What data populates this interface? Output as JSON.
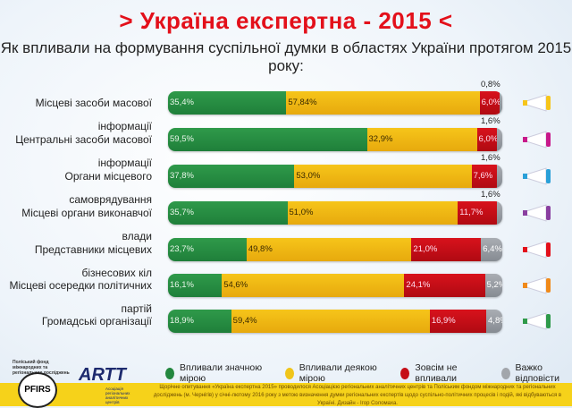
{
  "title": "> Україна експертна - 2015 <",
  "subtitle": "Як впливали на формування суспільної думки в областях України протягом 2015 року:",
  "colors": {
    "green": "#23873f",
    "yellow": "#f0b715",
    "red": "#c50f18",
    "gray": "#979ba1",
    "title": "#e3101a"
  },
  "chart_data": {
    "type": "bar",
    "stacked": true,
    "orientation": "horizontal",
    "title": "Як впливали на формування суспільної думки в областях України протягом 2015 року:",
    "categories": [
      "Місцеві засоби масової інформації",
      "Центральні засоби масової інформації",
      "Органи місцевого самоврядування",
      "Місцеві органи виконавчої влади",
      "Представники місцевих бізнесових кіл",
      "Місцеві осередки політичних партій",
      "Громадські організації"
    ],
    "series": [
      {
        "name": "Впливали значною мірою",
        "color": "#23873f",
        "values": [
          35.4,
          59.5,
          37.8,
          35.7,
          23.7,
          16.1,
          18.9
        ],
        "labels": [
          "35,4%",
          "59,5%",
          "37,8%",
          "35,7%",
          "23,7%",
          "16,1%",
          "18,9%"
        ]
      },
      {
        "name": "Впливали деякою мірою",
        "color": "#f0b715",
        "values": [
          57.84,
          32.9,
          53.0,
          51.0,
          49.8,
          54.6,
          59.4
        ],
        "labels": [
          "57,84%",
          "32,9%",
          "53,0%",
          "51,0%",
          "49,8%",
          "54,6%",
          "59,4%"
        ]
      },
      {
        "name": "Зовсім не впливали",
        "color": "#c50f18",
        "values": [
          6.0,
          6.0,
          7.6,
          11.7,
          21.0,
          24.1,
          16.9
        ],
        "labels": [
          "6,0%",
          "6,0%",
          "7,6%",
          "11,7%",
          "21,0%",
          "24,1%",
          "16,9%"
        ]
      },
      {
        "name": "Важко відповісти",
        "color": "#979ba1",
        "values": [
          0.8,
          1.6,
          1.6,
          1.6,
          6.4,
          5.2,
          4.8
        ],
        "labels": [
          "0,8%",
          "1,6%",
          "1,6%",
          "1,6%",
          "6,4%",
          "5,2%",
          "4,8%"
        ]
      }
    ],
    "xlim": [
      0,
      100
    ],
    "legend": "bottom"
  },
  "logos": {
    "pfirs_caption": "Поліський фонд міжнародних та регіональних досліджень",
    "pfirs": "PFIRS",
    "artt": "ARTT",
    "artt_caption": "Асоціація регіональних аналітичних центрів"
  },
  "footer": "Щорічне опитування «Україна експертна 2015» проводилося Асоціацією регіональних аналітичних центрів та Поліським фондом міжнародних та регіональних досліджень (м. Чернігів) у січні-лютому 2016 року з метою визначення думки регіональних експертів щодо суспільно-політичних процесів і подій, які відбуваються в Україні. Дизайн - Ігор Соломаха."
}
